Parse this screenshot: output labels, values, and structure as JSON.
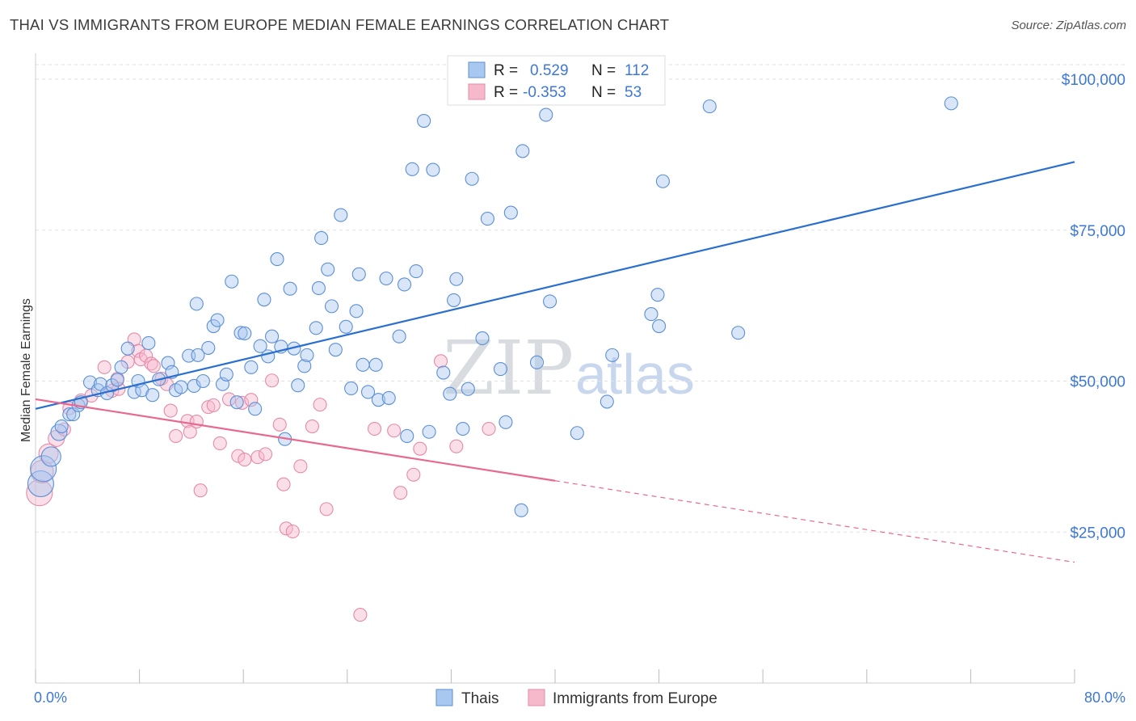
{
  "title": "THAI VS IMMIGRANTS FROM EUROPE MEDIAN FEMALE EARNINGS CORRELATION CHART",
  "source": "Source: ZipAtlas.com",
  "watermark": {
    "part1": "ZIP",
    "part2": "atlas"
  },
  "colors": {
    "thais_fill": "#a9c8ef",
    "thais_stroke": "#5b8fd6",
    "thais_line": "#2a6fd0",
    "europe_fill": "#f6b8cb",
    "europe_stroke": "#e58aa8",
    "europe_line": "#e8698f",
    "tick_color": "#3d78d6",
    "grid": "#e2e2e2"
  },
  "legend": {
    "rows": [
      {
        "r_label": "R =",
        "r_value": "0.529",
        "n_label": "N =",
        "n_value": "112"
      },
      {
        "r_label": "R =",
        "r_value": "-0.353",
        "n_label": "N =",
        "n_value": "53"
      }
    ]
  },
  "chart_data": {
    "type": "scatter",
    "title": "THAI VS IMMIGRANTS FROM EUROPE MEDIAN FEMALE EARNINGS CORRELATION CHART",
    "xlabel": "",
    "ylabel": "Median Female Earnings",
    "xlim": [
      0,
      80
    ],
    "ylim": [
      0,
      105000
    ],
    "x_tick_labels": [
      "0.0%",
      "80.0%"
    ],
    "y_ticks": [
      25000,
      50000,
      75000,
      100000
    ],
    "y_tick_labels": [
      "$25,000",
      "$50,000",
      "$75,000",
      "$100,000"
    ],
    "grid": true,
    "legend_position": "top-center",
    "series": [
      {
        "name": "Thais",
        "r": 0.529,
        "n": 112,
        "trend": {
          "x": [
            0,
            80
          ],
          "y": [
            45400,
            86300
          ],
          "solid_until_x": 80
        },
        "points": [
          [
            0.4,
            33000,
            16
          ],
          [
            0.6,
            35500,
            16
          ],
          [
            1.2,
            37500,
            12
          ],
          [
            1.8,
            41500,
            10
          ],
          [
            2.0,
            42500,
            8
          ],
          [
            2.6,
            44500,
            8
          ],
          [
            2.9,
            44500,
            8
          ],
          [
            3.3,
            46000,
            8
          ],
          [
            3.5,
            46500,
            8
          ],
          [
            4.2,
            49800,
            8
          ],
          [
            4.8,
            48500,
            8
          ],
          [
            5.0,
            49500,
            8
          ],
          [
            5.5,
            48000,
            8
          ],
          [
            5.9,
            49300,
            8
          ],
          [
            6.3,
            50200,
            8
          ],
          [
            6.6,
            52300,
            8
          ],
          [
            7.1,
            55400,
            8
          ],
          [
            7.6,
            48200,
            8
          ],
          [
            7.9,
            50000,
            8
          ],
          [
            8.2,
            48500,
            8
          ],
          [
            8.7,
            56300,
            8
          ],
          [
            9.0,
            47700,
            8
          ],
          [
            9.5,
            50300,
            8
          ],
          [
            10.2,
            53000,
            8
          ],
          [
            10.5,
            51500,
            8
          ],
          [
            10.8,
            48500,
            8
          ],
          [
            11.2,
            49000,
            8
          ],
          [
            11.8,
            54200,
            8
          ],
          [
            12.2,
            49200,
            8
          ],
          [
            12.5,
            54300,
            8
          ],
          [
            12.4,
            62800,
            8
          ],
          [
            12.9,
            50000,
            8
          ],
          [
            13.3,
            55500,
            8
          ],
          [
            13.7,
            59100,
            8
          ],
          [
            14.0,
            60100,
            8
          ],
          [
            14.4,
            49500,
            8
          ],
          [
            14.7,
            51100,
            8
          ],
          [
            15.1,
            66500,
            8
          ],
          [
            15.5,
            46500,
            8
          ],
          [
            15.8,
            58000,
            8
          ],
          [
            16.1,
            57900,
            8
          ],
          [
            16.6,
            52300,
            8
          ],
          [
            16.9,
            45400,
            8
          ],
          [
            17.3,
            55800,
            8
          ],
          [
            17.6,
            63500,
            8
          ],
          [
            17.9,
            54100,
            8
          ],
          [
            18.2,
            57400,
            8
          ],
          [
            18.6,
            70200,
            8
          ],
          [
            18.9,
            55700,
            8
          ],
          [
            19.2,
            40400,
            8
          ],
          [
            19.6,
            65300,
            8
          ],
          [
            19.9,
            55400,
            8
          ],
          [
            20.2,
            49300,
            8
          ],
          [
            20.7,
            52500,
            8
          ],
          [
            20.9,
            54300,
            8
          ],
          [
            21.6,
            58800,
            8
          ],
          [
            21.8,
            65400,
            8
          ],
          [
            22.0,
            73700,
            8
          ],
          [
            22.5,
            68500,
            8
          ],
          [
            22.8,
            62400,
            8
          ],
          [
            23.1,
            55200,
            8
          ],
          [
            23.5,
            77500,
            8
          ],
          [
            23.9,
            59000,
            8
          ],
          [
            24.3,
            48800,
            8
          ],
          [
            24.7,
            61600,
            8
          ],
          [
            24.9,
            67700,
            8
          ],
          [
            25.2,
            52700,
            8
          ],
          [
            25.6,
            48200,
            8
          ],
          [
            26.2,
            52700,
            8
          ],
          [
            26.4,
            46900,
            8
          ],
          [
            27.0,
            67000,
            8
          ],
          [
            27.2,
            47200,
            8
          ],
          [
            28.0,
            57400,
            8
          ],
          [
            28.4,
            66000,
            8
          ],
          [
            28.6,
            40900,
            8
          ],
          [
            29.0,
            85100,
            8
          ],
          [
            29.3,
            68200,
            8
          ],
          [
            29.9,
            93100,
            8
          ],
          [
            30.3,
            41600,
            8
          ],
          [
            30.6,
            85000,
            8
          ],
          [
            31.4,
            51400,
            8
          ],
          [
            31.9,
            47900,
            8
          ],
          [
            32.2,
            63400,
            8
          ],
          [
            32.4,
            66900,
            8
          ],
          [
            32.9,
            42100,
            8
          ],
          [
            33.3,
            48700,
            8
          ],
          [
            33.6,
            83500,
            8
          ],
          [
            34.4,
            57100,
            8
          ],
          [
            34.8,
            76900,
            8
          ],
          [
            35.8,
            52000,
            8
          ],
          [
            36.2,
            43200,
            8
          ],
          [
            36.6,
            77900,
            8
          ],
          [
            37.4,
            28600,
            8
          ],
          [
            37.5,
            88100,
            8
          ],
          [
            38.6,
            53100,
            8
          ],
          [
            39.3,
            94100,
            8
          ],
          [
            39.6,
            63200,
            8
          ],
          [
            41.7,
            41400,
            8
          ],
          [
            44.0,
            46600,
            8
          ],
          [
            44.4,
            54300,
            8
          ],
          [
            47.4,
            61100,
            8
          ],
          [
            47.9,
            64300,
            8
          ],
          [
            48.0,
            59100,
            8
          ],
          [
            48.3,
            83100,
            8
          ],
          [
            51.9,
            95500,
            8
          ],
          [
            54.1,
            58000,
            8
          ],
          [
            70.5,
            96000,
            8
          ]
        ]
      },
      {
        "name": "Immigrants from Europe",
        "r": -0.353,
        "n": 53,
        "trend": {
          "x": [
            0,
            80
          ],
          "y": [
            47000,
            20000
          ],
          "solid_until_x": 40
        },
        "points": [
          [
            0.3,
            31500,
            16
          ],
          [
            0.5,
            35000,
            14
          ],
          [
            1.0,
            38000,
            12
          ],
          [
            1.6,
            40500,
            10
          ],
          [
            2.2,
            42000,
            8
          ],
          [
            2.6,
            45500,
            8
          ],
          [
            3.5,
            46800,
            8
          ],
          [
            4.3,
            47600,
            8
          ],
          [
            5.3,
            52300,
            8
          ],
          [
            5.9,
            48400,
            8
          ],
          [
            6.3,
            50400,
            8
          ],
          [
            6.4,
            48700,
            8
          ],
          [
            7.1,
            53200,
            8
          ],
          [
            7.6,
            56900,
            8
          ],
          [
            7.9,
            55000,
            8
          ],
          [
            8.1,
            53600,
            8
          ],
          [
            8.5,
            54200,
            8
          ],
          [
            8.9,
            52900,
            8
          ],
          [
            9.1,
            52500,
            8
          ],
          [
            9.7,
            50400,
            8
          ],
          [
            10.1,
            49500,
            8
          ],
          [
            10.4,
            45100,
            8
          ],
          [
            10.8,
            40900,
            8
          ],
          [
            11.7,
            43400,
            8
          ],
          [
            11.9,
            41600,
            8
          ],
          [
            12.4,
            43300,
            8
          ],
          [
            12.7,
            31900,
            8
          ],
          [
            13.3,
            45700,
            8
          ],
          [
            13.7,
            46000,
            8
          ],
          [
            14.2,
            39700,
            8
          ],
          [
            14.9,
            47000,
            8
          ],
          [
            15.6,
            37600,
            8
          ],
          [
            15.9,
            46400,
            8
          ],
          [
            16.1,
            37000,
            8
          ],
          [
            16.6,
            46900,
            8
          ],
          [
            17.1,
            37400,
            8
          ],
          [
            17.7,
            37900,
            8
          ],
          [
            18.2,
            50100,
            8
          ],
          [
            18.8,
            42800,
            8
          ],
          [
            19.1,
            32900,
            8
          ],
          [
            19.3,
            25600,
            8
          ],
          [
            19.8,
            25100,
            8
          ],
          [
            20.4,
            35900,
            8
          ],
          [
            21.3,
            42500,
            8
          ],
          [
            21.9,
            46100,
            8
          ],
          [
            22.4,
            28800,
            8
          ],
          [
            25.0,
            11300,
            8
          ],
          [
            26.1,
            42100,
            8
          ],
          [
            27.6,
            41800,
            8
          ],
          [
            28.1,
            31500,
            8
          ],
          [
            29.1,
            34500,
            8
          ],
          [
            29.6,
            38800,
            8
          ],
          [
            31.2,
            53300,
            8
          ],
          [
            32.4,
            39200,
            8
          ],
          [
            34.9,
            42100,
            8
          ]
        ]
      }
    ]
  },
  "bottom_legend": {
    "thais": "Thais",
    "europe": "Immigrants from Europe"
  }
}
